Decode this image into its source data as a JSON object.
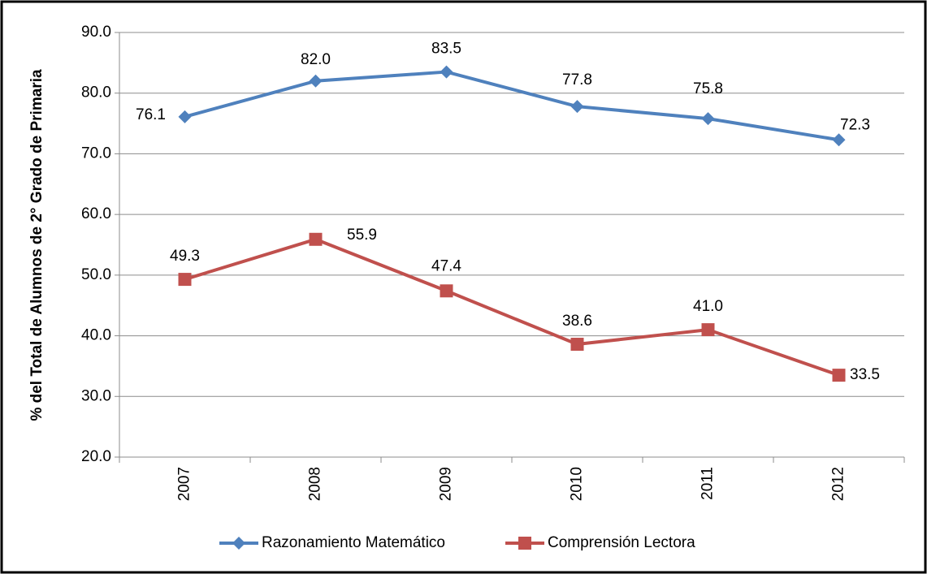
{
  "chart_data": {
    "type": "line",
    "y_axis_label": "% del Total de Alumnos de 2° Grado de Primaria",
    "categories": [
      "2007",
      "2008",
      "2009",
      "2010",
      "2011",
      "2012"
    ],
    "series": [
      {
        "name": "Razonamiento Matemático",
        "color": "#4f81bd",
        "marker": "diamond",
        "values": [
          76.1,
          82.0,
          83.5,
          77.8,
          75.8,
          72.3
        ],
        "value_labels": [
          "76.1",
          "82.0",
          "83.5",
          "77.8",
          "75.8",
          "72.3"
        ]
      },
      {
        "name": "Comprensión Lectora",
        "color": "#c0504d",
        "marker": "square",
        "values": [
          49.3,
          55.9,
          47.4,
          38.6,
          41.0,
          33.5
        ],
        "value_labels": [
          "49.3",
          "55.9",
          "47.4",
          "38.6",
          "41.0",
          "33.5"
        ]
      }
    ],
    "ylim": [
      20,
      90
    ],
    "yticks": [
      {
        "value": 20,
        "label": "20.0"
      },
      {
        "value": 30,
        "label": "30.0"
      },
      {
        "value": 40,
        "label": "40.0"
      },
      {
        "value": 50,
        "label": "50.0"
      },
      {
        "value": 60,
        "label": "60.0"
      },
      {
        "value": 70,
        "label": "70.0"
      },
      {
        "value": 80,
        "label": "80.0"
      },
      {
        "value": 90,
        "label": "90.0"
      }
    ],
    "grid": true,
    "legend": "bottom"
  }
}
